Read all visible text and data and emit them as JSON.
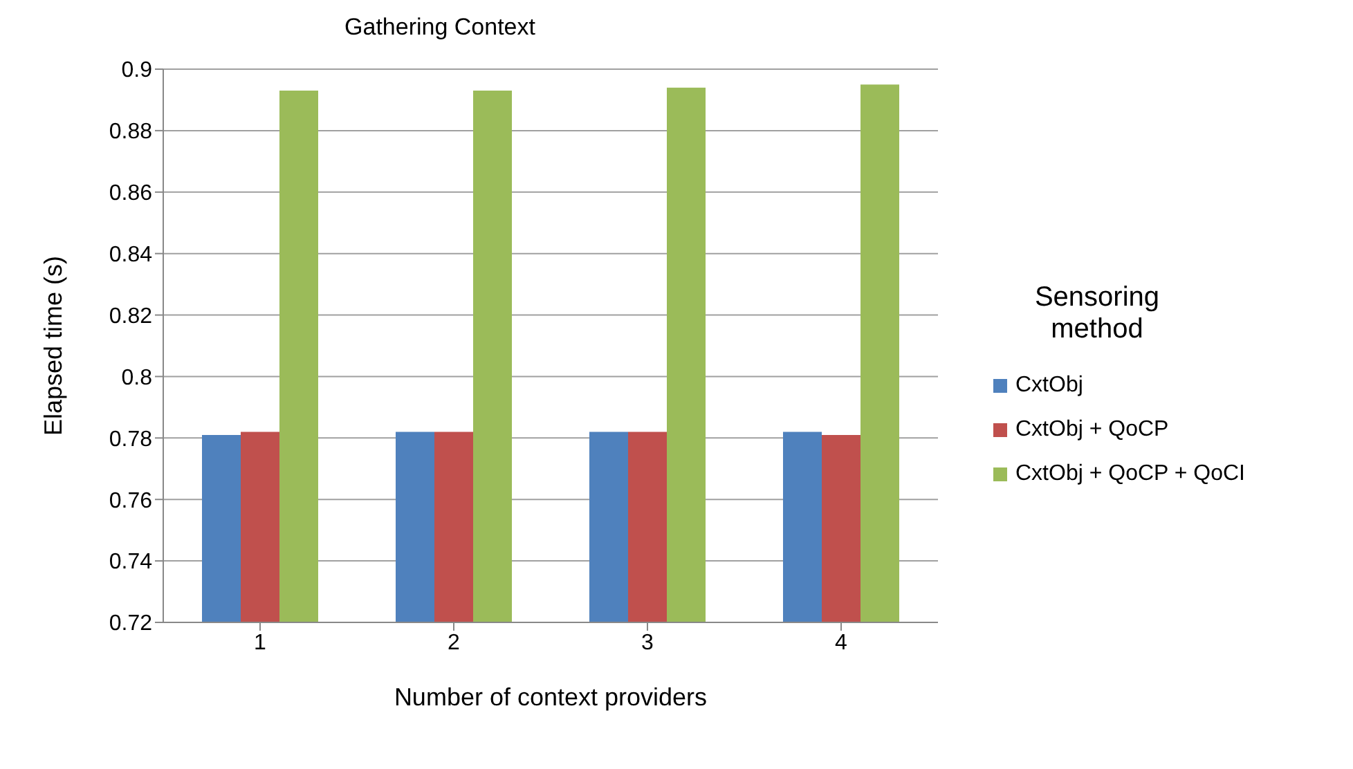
{
  "chart_data": {
    "type": "bar",
    "title": "Gathering Context",
    "xlabel": "Number of context providers",
    "ylabel": "Elapsed time (s)",
    "legend_title": "Sensoring method",
    "categories": [
      "1",
      "2",
      "3",
      "4"
    ],
    "series": [
      {
        "name": "CxtObj",
        "color": "#4f81bd",
        "values": [
          0.781,
          0.782,
          0.782,
          0.782
        ]
      },
      {
        "name": "CxtObj + QoCP",
        "color": "#c0504d",
        "values": [
          0.782,
          0.782,
          0.782,
          0.781
        ]
      },
      {
        "name": "CxtObj + QoCP + QoCI",
        "color": "#9bbb59",
        "values": [
          0.893,
          0.893,
          0.894,
          0.895
        ]
      }
    ],
    "ylim": [
      0.72,
      0.9
    ],
    "yticks": [
      0.72,
      0.74,
      0.76,
      0.78,
      0.8,
      0.82,
      0.84,
      0.86,
      0.88,
      0.9
    ],
    "grid": "y",
    "legend": "right"
  }
}
